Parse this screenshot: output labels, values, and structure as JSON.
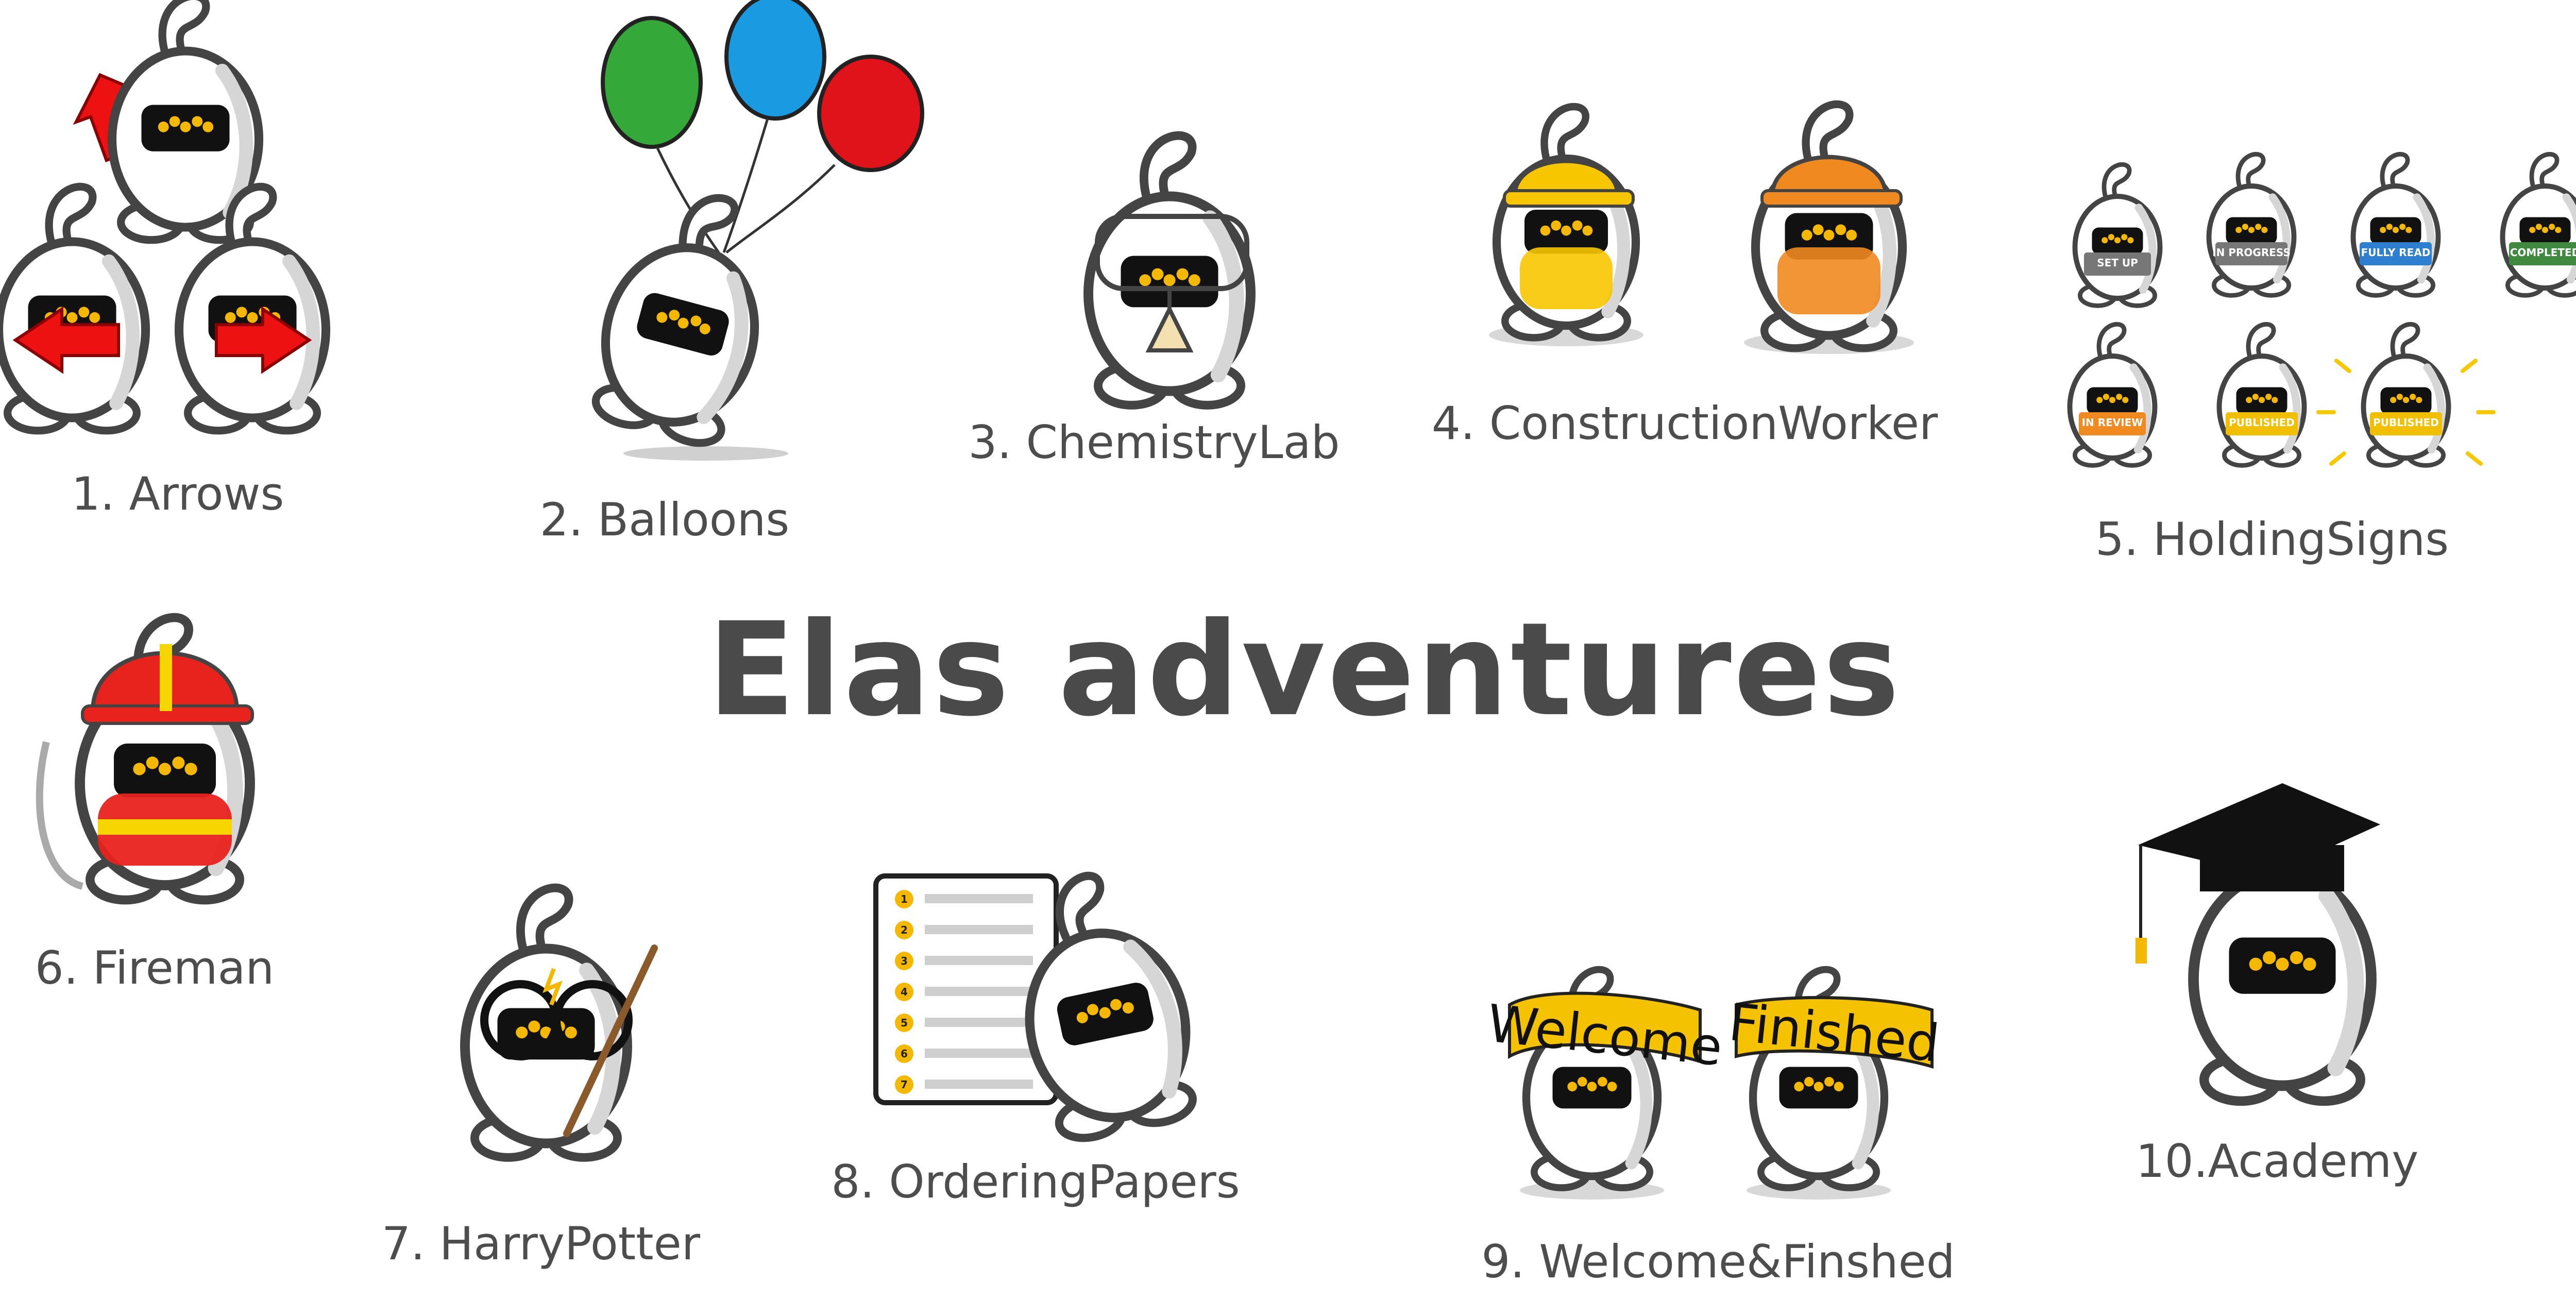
{
  "title": "Elas adventures",
  "colors": {
    "outline": "#444444",
    "visor": "#111111",
    "eyes": "#f5b800",
    "text": "#4d4d4d"
  },
  "scenes": [
    {
      "label": "1. Arrows"
    },
    {
      "label": "2. Balloons"
    },
    {
      "label": "3. ChemistryLab"
    },
    {
      "label": "4. ConstructionWorker"
    },
    {
      "label": "5. HoldingSigns",
      "signs": [
        "SET UP",
        "IN PROGRESS",
        "FULLY READ",
        "COMPLETED",
        "IN REVIEW",
        "PUBLISHED",
        "PUBLISHED"
      ]
    },
    {
      "label": "6. Fireman"
    },
    {
      "label": "7. HarryPotter"
    },
    {
      "label": "8. OrderingPapers",
      "list_numbers": [
        "1",
        "2",
        "3",
        "4",
        "5",
        "6",
        "7"
      ]
    },
    {
      "label": "9. Welcome&Finshed",
      "banners": [
        "Welcome",
        "Finished"
      ]
    },
    {
      "label": "10.Academy"
    }
  ]
}
